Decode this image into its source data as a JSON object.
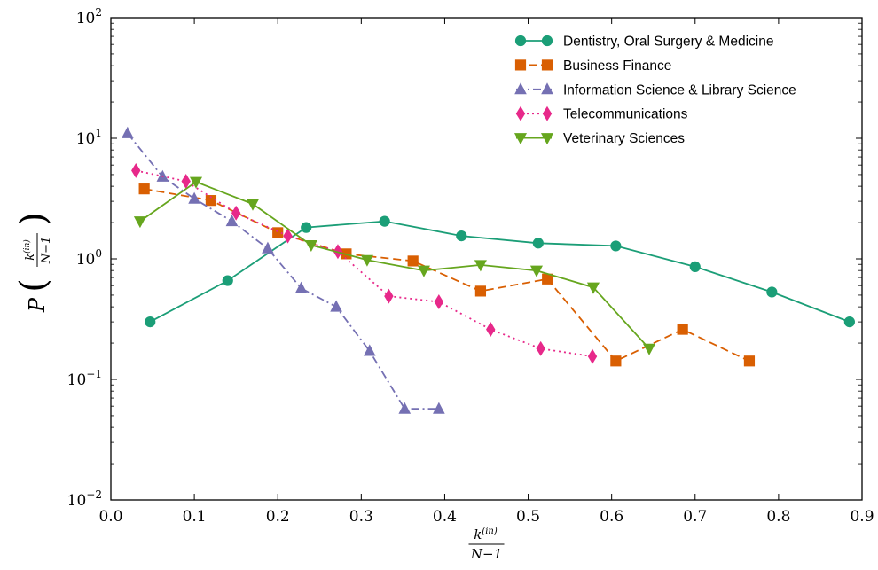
{
  "chart_data": {
    "type": "line",
    "title": "",
    "xlabel": {
      "num": "k",
      "num_sup": "(in)",
      "den": "N−1"
    },
    "ylabel": {
      "lead": "P",
      "num": "k",
      "num_sup": "(in)",
      "den": "N−1"
    },
    "xlim": [
      0.0,
      0.9
    ],
    "ylim": [
      0.01,
      100
    ],
    "yscale": "log",
    "grid": false,
    "legend_position": "top-right",
    "x_ticks": [
      0.0,
      0.1,
      0.2,
      0.3,
      0.4,
      0.5,
      0.6,
      0.7,
      0.8,
      0.9
    ],
    "x_tick_labels": [
      "0.0",
      "0.1",
      "0.2",
      "0.3",
      "0.4",
      "0.5",
      "0.6",
      "0.7",
      "0.8",
      "0.9"
    ],
    "y_ticks": [
      {
        "value": 100,
        "base": "10",
        "exp": "2"
      },
      {
        "value": 10,
        "base": "10",
        "exp": "1"
      },
      {
        "value": 1,
        "base": "10",
        "exp": "0"
      },
      {
        "value": 0.1,
        "base": "10",
        "exp": "−1"
      },
      {
        "value": 0.01,
        "base": "10",
        "exp": "−2"
      }
    ],
    "series": [
      {
        "name": "Dentistry, Oral Surgery & Medicine",
        "color": "#1b9e77",
        "dash": "",
        "marker": "circle",
        "points": [
          [
            0.047,
            0.3
          ],
          [
            0.14,
            0.66
          ],
          [
            0.234,
            1.82
          ],
          [
            0.328,
            2.05
          ],
          [
            0.42,
            1.55
          ],
          [
            0.512,
            1.35
          ],
          [
            0.605,
            1.28
          ],
          [
            0.7,
            0.86
          ],
          [
            0.792,
            0.53
          ],
          [
            0.885,
            0.3
          ]
        ]
      },
      {
        "name": "Business Finance",
        "color": "#d95f02",
        "dash": "9,5",
        "marker": "square",
        "points": [
          [
            0.04,
            3.8
          ],
          [
            0.12,
            3.05
          ],
          [
            0.2,
            1.65
          ],
          [
            0.282,
            1.1
          ],
          [
            0.362,
            0.96
          ],
          [
            0.443,
            0.54
          ],
          [
            0.523,
            0.68
          ],
          [
            0.605,
            0.142
          ],
          [
            0.685,
            0.26
          ],
          [
            0.765,
            0.142
          ]
        ]
      },
      {
        "name": "Information Science & Library Science",
        "color": "#7570b3",
        "dash": "9,4,2,4",
        "marker": "triangle-up",
        "points": [
          [
            0.02,
            11.0
          ],
          [
            0.062,
            4.8
          ],
          [
            0.1,
            3.15
          ],
          [
            0.145,
            2.05
          ],
          [
            0.188,
            1.22
          ],
          [
            0.228,
            0.57
          ],
          [
            0.27,
            0.4
          ],
          [
            0.31,
            0.172
          ],
          [
            0.352,
            0.057
          ],
          [
            0.393,
            0.057
          ]
        ]
      },
      {
        "name": "Telecommunications",
        "color": "#e7298a",
        "dash": "2,4",
        "marker": "diamond",
        "points": [
          [
            0.03,
            5.4
          ],
          [
            0.09,
            4.4
          ],
          [
            0.15,
            2.4
          ],
          [
            0.212,
            1.55
          ],
          [
            0.272,
            1.15
          ],
          [
            0.333,
            0.49
          ],
          [
            0.393,
            0.44
          ],
          [
            0.455,
            0.26
          ],
          [
            0.515,
            0.18
          ],
          [
            0.577,
            0.155
          ]
        ]
      },
      {
        "name": "Veterinary Sciences",
        "color": "#66a61e",
        "dash": "",
        "marker": "triangle-down",
        "points": [
          [
            0.035,
            2.05
          ],
          [
            0.102,
            4.35
          ],
          [
            0.17,
            2.85
          ],
          [
            0.24,
            1.3
          ],
          [
            0.307,
            0.98
          ],
          [
            0.375,
            0.8
          ],
          [
            0.443,
            0.89
          ],
          [
            0.51,
            0.8
          ],
          [
            0.578,
            0.58
          ],
          [
            0.645,
            0.18
          ]
        ]
      }
    ]
  }
}
